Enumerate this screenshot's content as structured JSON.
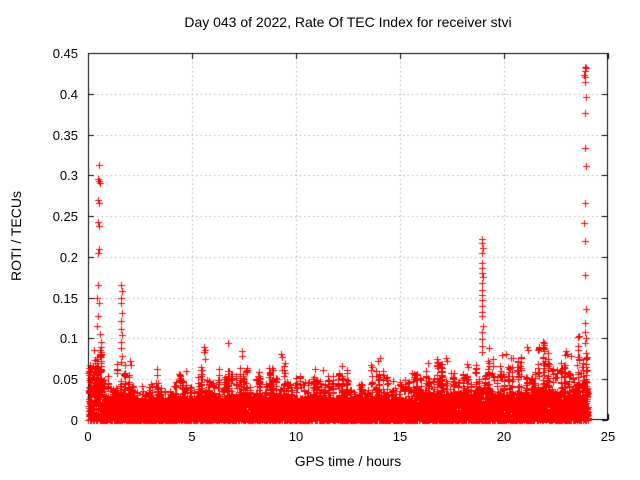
{
  "chart_data": {
    "type": "scatter",
    "title": "Day 043 of 2022, Rate Of TEC Index for receiver stvi",
    "xlabel": "GPS time / hours",
    "ylabel": "ROTI / TECUs",
    "series_name": "ROTI",
    "xlim": [
      0,
      25
    ],
    "ylim": [
      0,
      0.45
    ],
    "xticks": [
      0,
      5,
      10,
      15,
      20,
      25
    ],
    "yticks": [
      0,
      0.05,
      0.1,
      0.15,
      0.2,
      0.25,
      0.3,
      0.35,
      0.4,
      0.45
    ],
    "xtick_labels": [
      "0",
      "5",
      "10",
      "15",
      "20",
      "25"
    ],
    "ytick_labels": [
      "0",
      "0.05",
      "0.1",
      "0.15",
      "0.2",
      "0.25",
      "0.3",
      "0.35",
      "0.4",
      "0.45"
    ],
    "grid": {
      "visible": true,
      "style": "dotted",
      "color": "#b0b0b0"
    },
    "marker": {
      "shape": "plus",
      "color": "#ff0000",
      "size": 7
    },
    "background_color": "#ffffff",
    "border_color": "#000000",
    "outlier_points": [
      [
        0.52,
        0.313
      ],
      [
        0.5,
        0.296
      ],
      [
        0.55,
        0.293
      ],
      [
        0.57,
        0.29
      ],
      [
        0.48,
        0.27
      ],
      [
        0.53,
        0.266
      ],
      [
        0.5,
        0.243
      ],
      [
        0.55,
        0.238
      ],
      [
        0.52,
        0.21
      ],
      [
        0.48,
        0.205
      ],
      [
        0.5,
        0.165
      ],
      [
        0.45,
        0.15
      ],
      [
        0.55,
        0.143
      ],
      [
        0.5,
        0.128
      ],
      [
        0.42,
        0.115
      ],
      [
        0.58,
        0.105
      ],
      [
        1.6,
        0.165
      ],
      [
        1.62,
        0.158
      ],
      [
        1.58,
        0.15
      ],
      [
        1.6,
        0.143
      ],
      [
        1.63,
        0.131
      ],
      [
        1.58,
        0.122
      ],
      [
        1.6,
        0.112
      ],
      [
        1.62,
        0.104
      ],
      [
        1.6,
        0.096
      ],
      [
        1.58,
        0.088
      ],
      [
        1.62,
        0.079
      ],
      [
        1.6,
        0.071
      ],
      [
        2.0,
        0.072
      ],
      [
        2.05,
        0.068
      ],
      [
        3.3,
        0.063
      ],
      [
        4.7,
        0.06
      ],
      [
        5.58,
        0.089
      ],
      [
        5.62,
        0.086
      ],
      [
        5.6,
        0.083
      ],
      [
        6.3,
        0.062
      ],
      [
        6.72,
        0.095
      ],
      [
        7.38,
        0.084
      ],
      [
        7.42,
        0.079
      ],
      [
        8.2,
        0.059
      ],
      [
        9.28,
        0.081
      ],
      [
        9.33,
        0.077
      ],
      [
        10.9,
        0.062
      ],
      [
        11.3,
        0.061
      ],
      [
        12.2,
        0.066
      ],
      [
        13.95,
        0.072
      ],
      [
        14.02,
        0.076
      ],
      [
        15.6,
        0.058
      ],
      [
        16.35,
        0.07
      ],
      [
        17.2,
        0.076
      ],
      [
        17.25,
        0.072
      ],
      [
        18.2,
        0.069
      ],
      [
        18.25,
        0.065
      ],
      [
        18.95,
        0.222
      ],
      [
        18.92,
        0.217
      ],
      [
        18.97,
        0.211
      ],
      [
        18.94,
        0.205
      ],
      [
        18.96,
        0.192
      ],
      [
        18.93,
        0.186
      ],
      [
        18.95,
        0.18
      ],
      [
        18.97,
        0.175
      ],
      [
        18.94,
        0.168
      ],
      [
        18.96,
        0.16
      ],
      [
        18.95,
        0.153
      ],
      [
        18.93,
        0.147
      ],
      [
        18.96,
        0.14
      ],
      [
        18.94,
        0.133
      ],
      [
        18.95,
        0.127
      ],
      [
        18.97,
        0.115
      ],
      [
        18.94,
        0.108
      ],
      [
        18.96,
        0.099
      ],
      [
        18.95,
        0.091
      ],
      [
        18.93,
        0.083
      ],
      [
        19.3,
        0.088
      ],
      [
        19.45,
        0.075
      ],
      [
        19.9,
        0.08
      ],
      [
        20.1,
        0.081
      ],
      [
        21.1,
        0.09
      ],
      [
        21.15,
        0.086
      ],
      [
        21.88,
        0.096
      ],
      [
        21.9,
        0.094
      ],
      [
        21.92,
        0.092
      ],
      [
        21.86,
        0.09
      ],
      [
        21.94,
        0.088
      ],
      [
        21.9,
        0.085
      ],
      [
        23.0,
        0.085
      ],
      [
        23.05,
        0.081
      ],
      [
        23.2,
        0.078
      ],
      [
        23.88,
        0.433
      ],
      [
        23.92,
        0.431
      ],
      [
        23.9,
        0.428
      ],
      [
        23.86,
        0.423
      ],
      [
        23.91,
        0.42
      ],
      [
        23.89,
        0.415
      ],
      [
        23.93,
        0.396
      ],
      [
        23.9,
        0.377
      ],
      [
        23.88,
        0.334
      ],
      [
        23.92,
        0.312
      ],
      [
        23.9,
        0.266
      ],
      [
        23.87,
        0.241
      ],
      [
        23.91,
        0.219
      ],
      [
        23.89,
        0.178
      ],
      [
        23.92,
        0.136
      ],
      [
        23.9,
        0.119
      ],
      [
        23.88,
        0.108
      ],
      [
        23.93,
        0.101
      ],
      [
        23.9,
        0.094
      ]
    ],
    "baseline_bins": [
      {
        "from": 0.0,
        "to": 0.7,
        "dense": 0.065,
        "spike": 0.098
      },
      {
        "from": 0.7,
        "to": 1.3,
        "dense": 0.03,
        "spike": 0.06
      },
      {
        "from": 1.3,
        "to": 1.8,
        "dense": 0.035,
        "spike": 0.085
      },
      {
        "from": 1.8,
        "to": 2.3,
        "dense": 0.03,
        "spike": 0.072
      },
      {
        "from": 2.3,
        "to": 3.0,
        "dense": 0.025,
        "spike": 0.05
      },
      {
        "from": 3.0,
        "to": 3.6,
        "dense": 0.03,
        "spike": 0.062
      },
      {
        "from": 3.6,
        "to": 4.3,
        "dense": 0.025,
        "spike": 0.052
      },
      {
        "from": 4.3,
        "to": 5.2,
        "dense": 0.028,
        "spike": 0.058
      },
      {
        "from": 5.2,
        "to": 5.9,
        "dense": 0.032,
        "spike": 0.08
      },
      {
        "from": 5.9,
        "to": 6.6,
        "dense": 0.028,
        "spike": 0.06
      },
      {
        "from": 6.6,
        "to": 7.0,
        "dense": 0.03,
        "spike": 0.07
      },
      {
        "from": 7.0,
        "to": 7.7,
        "dense": 0.032,
        "spike": 0.08
      },
      {
        "from": 7.7,
        "to": 8.6,
        "dense": 0.028,
        "spike": 0.058
      },
      {
        "from": 8.6,
        "to": 9.5,
        "dense": 0.032,
        "spike": 0.078
      },
      {
        "from": 9.5,
        "to": 10.5,
        "dense": 0.027,
        "spike": 0.055
      },
      {
        "from": 10.5,
        "to": 11.5,
        "dense": 0.03,
        "spike": 0.06
      },
      {
        "from": 11.5,
        "to": 12.5,
        "dense": 0.028,
        "spike": 0.063
      },
      {
        "from": 12.5,
        "to": 13.5,
        "dense": 0.026,
        "spike": 0.055
      },
      {
        "from": 13.5,
        "to": 14.3,
        "dense": 0.03,
        "spike": 0.073
      },
      {
        "from": 14.3,
        "to": 15.5,
        "dense": 0.026,
        "spike": 0.056
      },
      {
        "from": 15.5,
        "to": 16.5,
        "dense": 0.03,
        "spike": 0.065
      },
      {
        "from": 16.5,
        "to": 17.5,
        "dense": 0.032,
        "spike": 0.075
      },
      {
        "from": 17.5,
        "to": 18.5,
        "dense": 0.033,
        "spike": 0.068
      },
      {
        "from": 18.5,
        "to": 19.4,
        "dense": 0.038,
        "spike": 0.08
      },
      {
        "from": 19.4,
        "to": 20.3,
        "dense": 0.032,
        "spike": 0.078
      },
      {
        "from": 20.3,
        "to": 21.4,
        "dense": 0.033,
        "spike": 0.085
      },
      {
        "from": 21.4,
        "to": 22.2,
        "dense": 0.038,
        "spike": 0.092
      },
      {
        "from": 22.2,
        "to": 23.4,
        "dense": 0.035,
        "spike": 0.083
      },
      {
        "from": 23.4,
        "to": 24.05,
        "dense": 0.045,
        "spike": 0.115
      }
    ]
  }
}
